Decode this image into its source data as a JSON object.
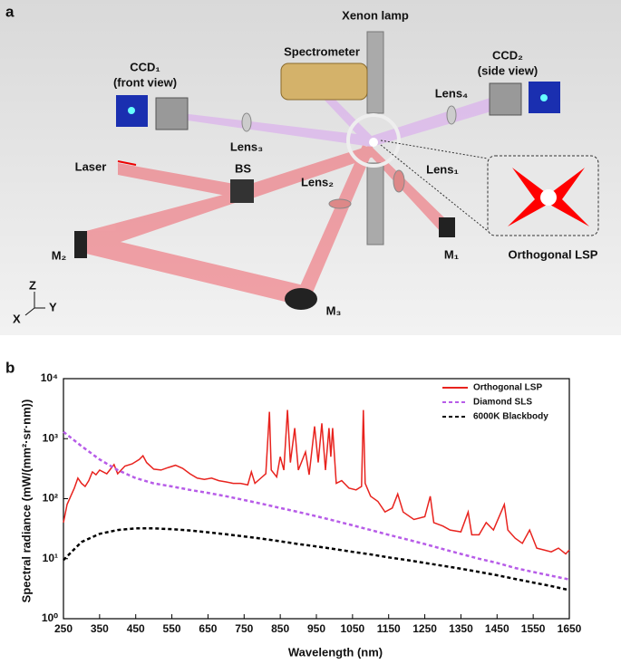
{
  "panels": [
    "a",
    "b"
  ],
  "diagram": {
    "labels": [
      "Xenon lamp",
      "Spectrometer",
      "CCD₁",
      "(front view)",
      "CCD₂",
      "(side view)",
      "Lens₄",
      "Lens₃",
      "Laser",
      "BS",
      "Lens₁",
      "Lens₂",
      "M₂",
      "M₁",
      "Orthogonal LSP",
      "M₃",
      "Z",
      "Y",
      "X"
    ]
  },
  "chart_data": {
    "type": "line",
    "x_label": "Wavelength (nm)",
    "y_label": "Spectral radiance (mW/(mm²·sr·nm))",
    "xlim": [
      250,
      1650
    ],
    "xticks": [
      250,
      350,
      450,
      550,
      650,
      750,
      850,
      950,
      1050,
      1150,
      1250,
      1350,
      1450,
      1550,
      1650
    ],
    "ylim": [
      1,
      10000
    ],
    "yscale": "log",
    "yticks": [
      {
        "value": 1,
        "label": "10⁰"
      },
      {
        "value": 10,
        "label": "10¹"
      },
      {
        "value": 100,
        "label": "10²"
      },
      {
        "value": 1000,
        "label": "10³"
      },
      {
        "value": 10000,
        "label": "10⁴"
      }
    ],
    "legend": "upper right",
    "series": [
      {
        "name": "Orthogonal LSP",
        "color": "#e8231e",
        "linestyle": "solid",
        "x": [
          250,
          260,
          270,
          280,
          290,
          300,
          310,
          320,
          330,
          340,
          350,
          370,
          390,
          400,
          420,
          440,
          460,
          470,
          480,
          500,
          520,
          540,
          560,
          580,
          600,
          620,
          640,
          660,
          680,
          700,
          720,
          740,
          760,
          770,
          780,
          800,
          810,
          820,
          825,
          840,
          850,
          860,
          870,
          878,
          890,
          900,
          920,
          930,
          945,
          955,
          965,
          975,
          985,
          990,
          995,
          1005,
          1020,
          1040,
          1060,
          1075,
          1080,
          1085,
          1100,
          1120,
          1140,
          1160,
          1175,
          1190,
          1220,
          1250,
          1265,
          1275,
          1300,
          1320,
          1350,
          1370,
          1380,
          1400,
          1420,
          1440,
          1470,
          1480,
          1500,
          1520,
          1540,
          1560,
          1580,
          1600,
          1620,
          1640,
          1650
        ],
        "values": [
          40,
          80,
          110,
          150,
          220,
          180,
          160,
          200,
          280,
          250,
          300,
          260,
          370,
          260,
          350,
          380,
          450,
          520,
          400,
          310,
          300,
          330,
          360,
          320,
          260,
          220,
          210,
          220,
          200,
          190,
          180,
          180,
          170,
          280,
          180,
          230,
          260,
          2800,
          300,
          230,
          500,
          300,
          3000,
          400,
          1500,
          300,
          600,
          250,
          1600,
          400,
          1800,
          300,
          1500,
          500,
          1500,
          180,
          200,
          150,
          140,
          160,
          3000,
          180,
          110,
          90,
          60,
          70,
          120,
          60,
          45,
          50,
          110,
          40,
          35,
          30,
          28,
          60,
          25,
          25,
          40,
          30,
          80,
          30,
          22,
          18,
          30,
          15,
          14,
          13,
          15,
          12,
          14
        ]
      },
      {
        "name": "Diamond SLS",
        "color": "#b75ce8",
        "linestyle": "dashed",
        "x": [
          250,
          300,
          350,
          400,
          450,
          500,
          550,
          600,
          650,
          700,
          750,
          800,
          850,
          900,
          950,
          1000,
          1050,
          1100,
          1150,
          1200,
          1250,
          1300,
          1350,
          1400,
          1450,
          1500,
          1550,
          1600,
          1650
        ],
        "values": [
          1300,
          750,
          450,
          300,
          220,
          180,
          160,
          140,
          125,
          110,
          95,
          82,
          70,
          60,
          51,
          43,
          36,
          30,
          25,
          21,
          17.5,
          14.5,
          12,
          10,
          8.5,
          7,
          6,
          5.2,
          4.5
        ]
      },
      {
        "name": "6000K Blackbody",
        "color": "#000000",
        "linestyle": "dashed",
        "x": [
          250,
          300,
          350,
          400,
          450,
          500,
          550,
          600,
          650,
          700,
          750,
          800,
          850,
          900,
          950,
          1000,
          1050,
          1100,
          1150,
          1200,
          1250,
          1300,
          1350,
          1400,
          1450,
          1500,
          1550,
          1600,
          1650
        ],
        "values": [
          9.5,
          19,
          26,
          30,
          32,
          32,
          31,
          29.5,
          27.5,
          25.5,
          23.5,
          21.5,
          19.5,
          17.5,
          16,
          14.5,
          13,
          11.8,
          10.5,
          9.5,
          8.5,
          7.6,
          6.8,
          6,
          5.3,
          4.6,
          4,
          3.5,
          3
        ]
      }
    ]
  }
}
